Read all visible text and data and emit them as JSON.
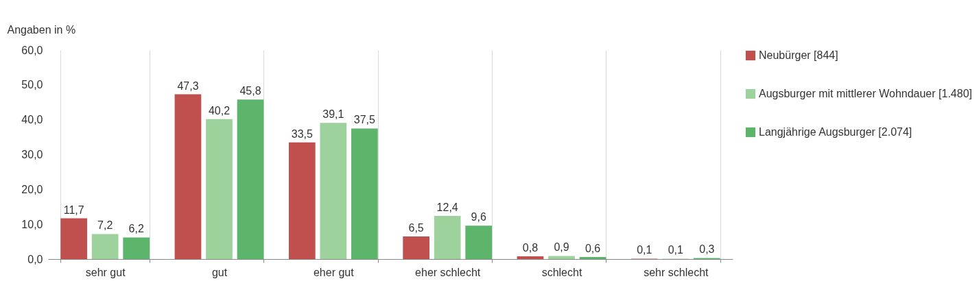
{
  "chart_data": {
    "type": "bar",
    "ylabel": "Angaben in %",
    "categories": [
      "sehr gut",
      "gut",
      "eher gut",
      "eher schlecht",
      "schlecht",
      "sehr schlecht"
    ],
    "series": [
      {
        "name": "Neubürger [844]",
        "color": "#c0504d",
        "values": [
          11.7,
          47.3,
          33.5,
          6.5,
          0.8,
          0.1
        ],
        "value_labels": [
          "11,7",
          "47,3",
          "33,5",
          "6,5",
          "0,8",
          "0,1"
        ]
      },
      {
        "name": "Augsburger mit mittlerer Wohndauer [1.480]",
        "color": "#9dd29c",
        "values": [
          7.2,
          40.2,
          39.1,
          12.4,
          0.9,
          0.1
        ],
        "value_labels": [
          "7,2",
          "40,2",
          "39,1",
          "12,4",
          "0,9",
          "0,1"
        ]
      },
      {
        "name": "Langjährige Augsburger [2.074]",
        "color": "#5db46b",
        "values": [
          6.2,
          45.8,
          37.5,
          9.6,
          0.6,
          0.3
        ],
        "value_labels": [
          "6,2",
          "45,8",
          "37,5",
          "9,6",
          "0,6",
          "0,3"
        ]
      }
    ],
    "ylim": [
      0,
      60
    ],
    "yticks": [
      {
        "value": 0,
        "label": "0,0"
      },
      {
        "value": 10,
        "label": "10,0"
      },
      {
        "value": 20,
        "label": "20,0"
      },
      {
        "value": 30,
        "label": "30,0"
      },
      {
        "value": 40,
        "label": "40,0"
      },
      {
        "value": 50,
        "label": "50,0"
      },
      {
        "value": 60,
        "label": "60,0"
      }
    ],
    "grid": "x",
    "legend": "top right"
  }
}
